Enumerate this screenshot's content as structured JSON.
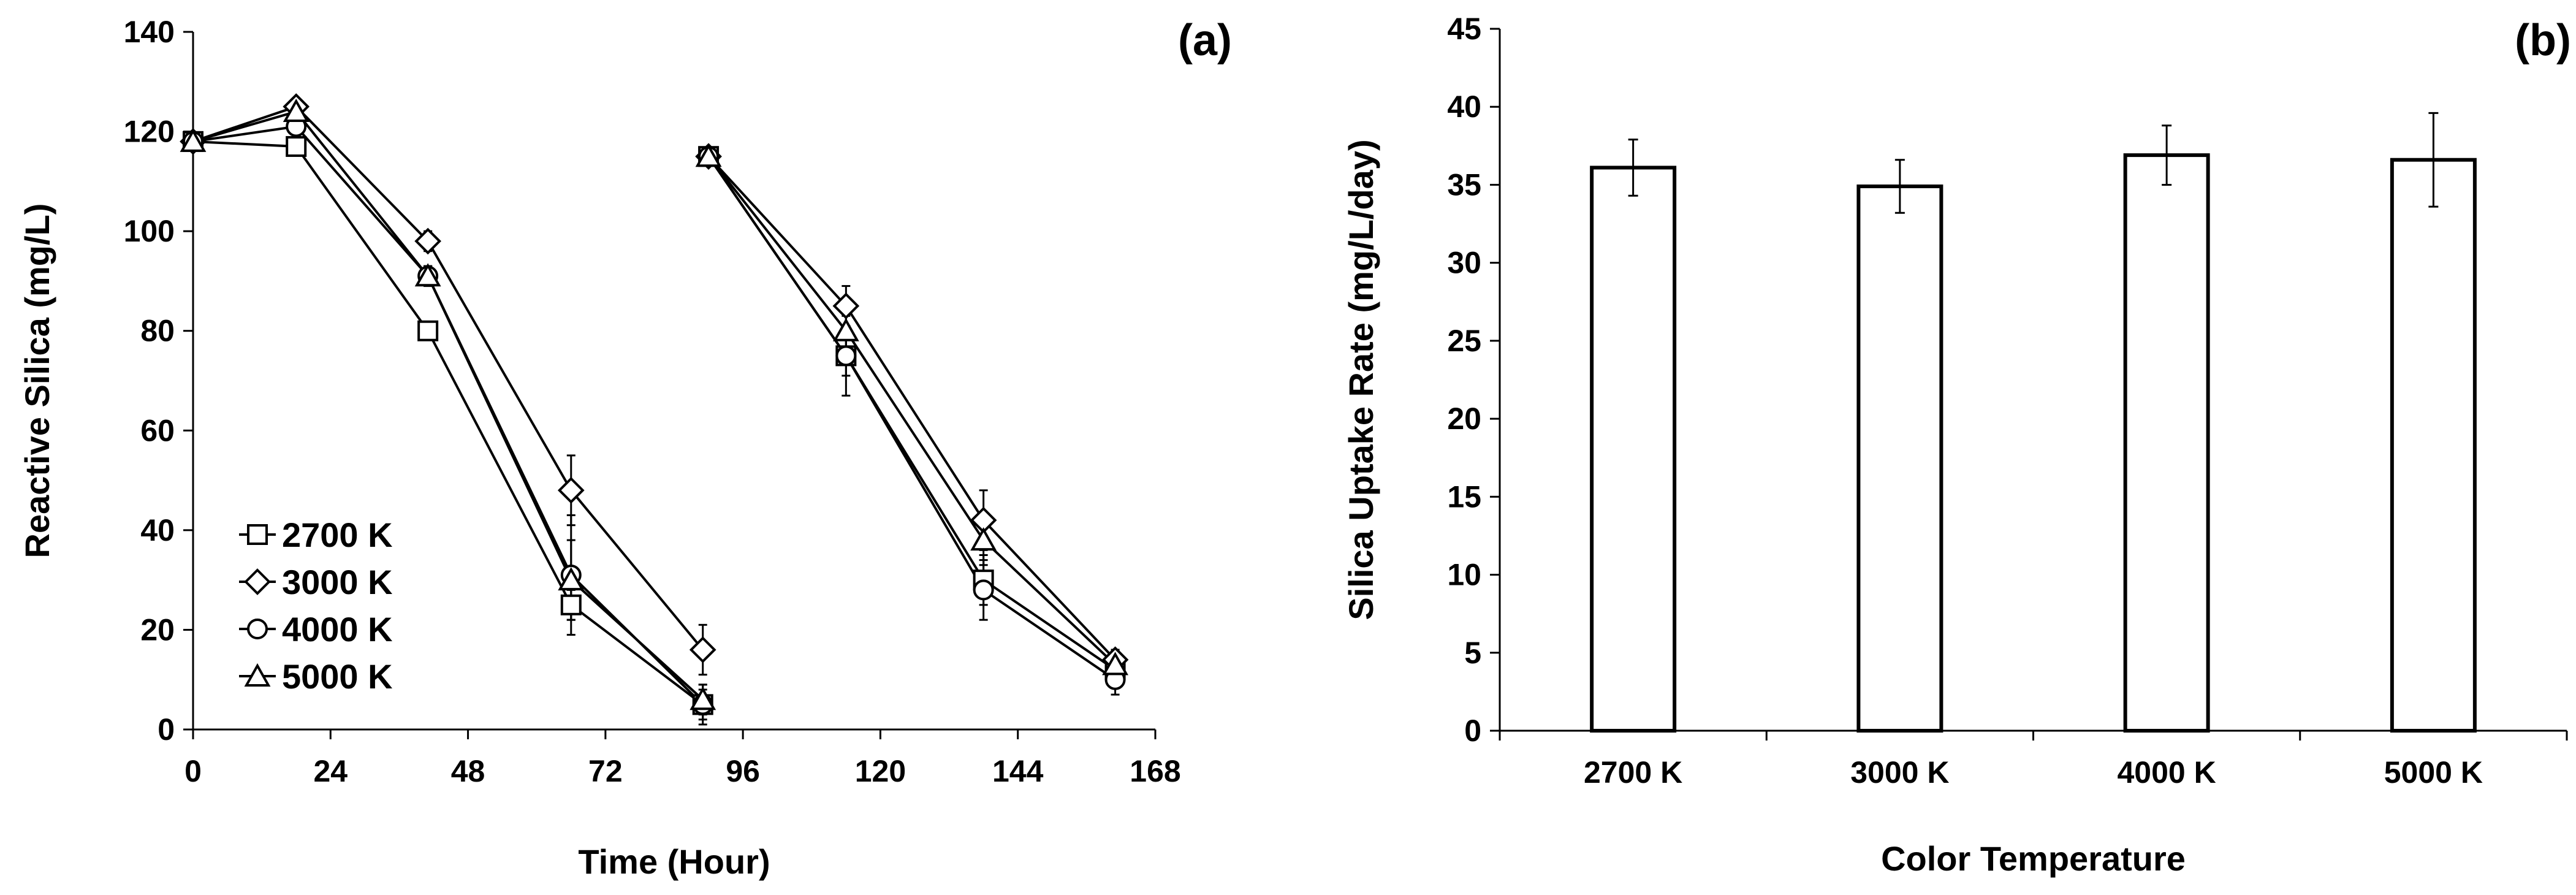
{
  "chart_data": [
    {
      "type": "line",
      "panel_label": "(a)",
      "xlabel": "Time (Hour)",
      "ylabel": "Reactive Silica (mg/L)",
      "xlim": [
        0,
        168
      ],
      "ylim": [
        0,
        140
      ],
      "xticks": [
        "0",
        "24",
        "48",
        "72",
        "96",
        "120",
        "144",
        "168"
      ],
      "yticks": [
        "0",
        "20",
        "40",
        "60",
        "80",
        "100",
        "120",
        "140"
      ],
      "legend_position": "lower-left",
      "series": [
        {
          "name": "2700 K",
          "marker": "square",
          "segments": [
            [
              {
                "x": 0,
                "y": 118
              },
              {
                "x": 18,
                "y": 117
              },
              {
                "x": 41,
                "y": 80
              },
              {
                "x": 66,
                "y": 25
              },
              {
                "x": 89,
                "y": 5
              }
            ],
            [
              {
                "x": 90,
                "y": 115
              },
              {
                "x": 114,
                "y": 75
              },
              {
                "x": 138,
                "y": 30
              },
              {
                "x": 161,
                "y": 12
              }
            ]
          ],
          "errors": [
            [
              0,
              1,
              1,
              3,
              3
            ],
            [
              1,
              4,
              5,
              2
            ]
          ]
        },
        {
          "name": "3000 K",
          "marker": "diamond",
          "segments": [
            [
              {
                "x": 0,
                "y": 118
              },
              {
                "x": 18,
                "y": 125
              },
              {
                "x": 41,
                "y": 98
              },
              {
                "x": 66,
                "y": 48
              },
              {
                "x": 89,
                "y": 16
              }
            ],
            [
              {
                "x": 90,
                "y": 115
              },
              {
                "x": 114,
                "y": 85
              },
              {
                "x": 138,
                "y": 42
              },
              {
                "x": 161,
                "y": 14
              }
            ]
          ],
          "errors": [
            [
              0,
              1,
              2,
              7,
              5
            ],
            [
              1,
              4,
              6,
              2
            ]
          ]
        },
        {
          "name": "4000 K",
          "marker": "circle",
          "segments": [
            [
              {
                "x": 0,
                "y": 118
              },
              {
                "x": 18,
                "y": 121
              },
              {
                "x": 41,
                "y": 91
              },
              {
                "x": 66,
                "y": 31
              },
              {
                "x": 89,
                "y": 5
              }
            ],
            [
              {
                "x": 90,
                "y": 115
              },
              {
                "x": 114,
                "y": 75
              },
              {
                "x": 138,
                "y": 28
              },
              {
                "x": 161,
                "y": 10
              }
            ]
          ],
          "errors": [
            [
              0,
              1,
              2,
              12,
              4
            ],
            [
              1,
              8,
              6,
              3
            ]
          ]
        },
        {
          "name": "5000 K",
          "marker": "triangle",
          "segments": [
            [
              {
                "x": 0,
                "y": 118
              },
              {
                "x": 18,
                "y": 124
              },
              {
                "x": 41,
                "y": 91
              },
              {
                "x": 66,
                "y": 30
              },
              {
                "x": 89,
                "y": 6
              }
            ],
            [
              {
                "x": 90,
                "y": 115
              },
              {
                "x": 114,
                "y": 80
              },
              {
                "x": 138,
                "y": 38
              },
              {
                "x": 161,
                "y": 13
              }
            ]
          ],
          "errors": [
            [
              0,
              1,
              2,
              8,
              3
            ],
            [
              1,
              4,
              5,
              2
            ]
          ]
        }
      ]
    },
    {
      "type": "bar",
      "panel_label": "(b)",
      "xlabel": "Color Temperature",
      "ylabel": "Silica Uptake Rate (mg/L/day)",
      "ylim": [
        0,
        45
      ],
      "yticks": [
        "0",
        "5",
        "10",
        "15",
        "20",
        "25",
        "30",
        "35",
        "40",
        "45"
      ],
      "categories": [
        "2700 K",
        "3000 K",
        "4000 K",
        "5000 K"
      ],
      "values": [
        36.1,
        34.9,
        36.9,
        36.6
      ],
      "errors": [
        1.8,
        1.7,
        1.9,
        3.0
      ]
    }
  ]
}
